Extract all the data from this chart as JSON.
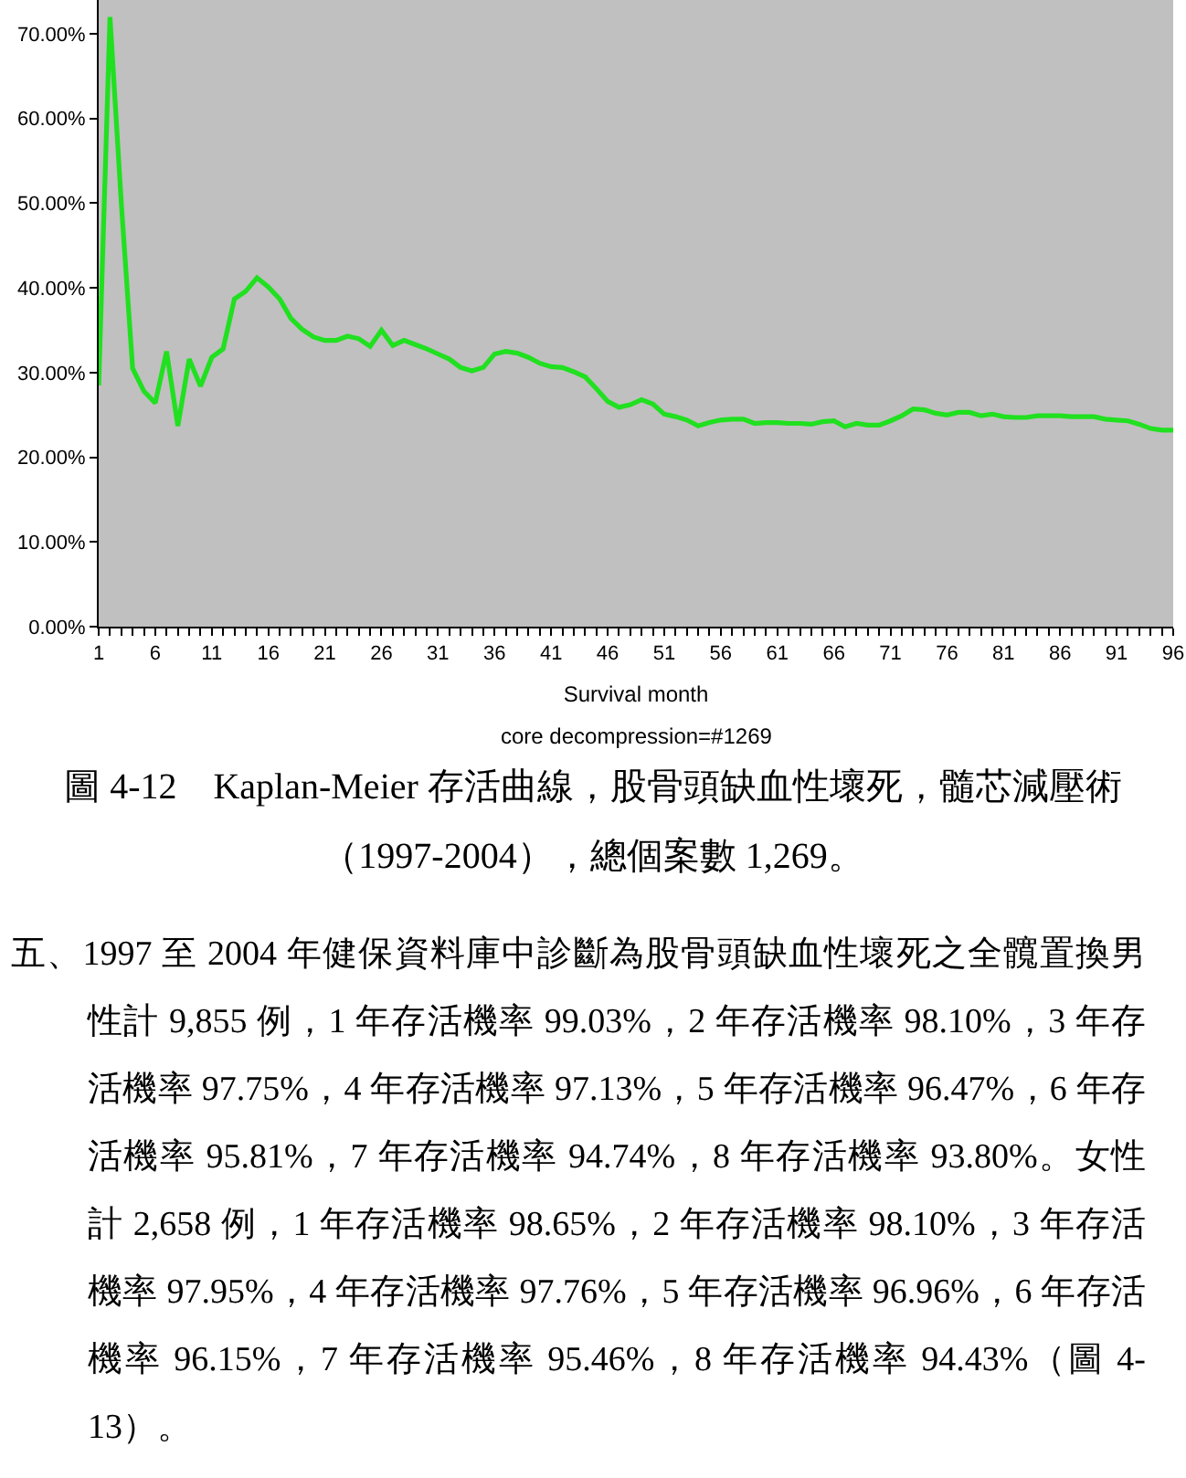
{
  "chart_data": {
    "type": "line",
    "x": [
      1,
      2,
      3,
      4,
      5,
      6,
      7,
      8,
      9,
      10,
      11,
      12,
      13,
      14,
      15,
      16,
      17,
      18,
      19,
      20,
      21,
      22,
      23,
      24,
      25,
      26,
      27,
      28,
      29,
      30,
      31,
      32,
      33,
      34,
      35,
      36,
      37,
      38,
      39,
      40,
      41,
      42,
      43,
      44,
      45,
      46,
      47,
      48,
      49,
      50,
      51,
      52,
      53,
      54,
      55,
      56,
      57,
      58,
      59,
      60,
      61,
      62,
      63,
      64,
      65,
      66,
      67,
      68,
      69,
      70,
      71,
      72,
      73,
      74,
      75,
      76,
      77,
      78,
      79,
      80,
      81,
      82,
      83,
      84,
      85,
      86,
      87,
      88,
      89,
      90,
      91,
      92,
      93,
      94,
      95,
      96
    ],
    "values": [
      28.5,
      72,
      50,
      30.5,
      27.8,
      26.4,
      32.5,
      23.7,
      31.6,
      28.4,
      31.8,
      32.8,
      38.7,
      39.6,
      41.2,
      40.1,
      38.7,
      36.4,
      35.1,
      34.2,
      33.8,
      33.8,
      34.3,
      34.0,
      33.1,
      35.0,
      33.2,
      33.8,
      33.3,
      32.8,
      32.2,
      31.6,
      30.6,
      30.2,
      30.6,
      32.2,
      32.5,
      32.3,
      31.8,
      31.1,
      30.7,
      30.6,
      30.1,
      29.5,
      28.1,
      26.6,
      25.9,
      26.2,
      26.8,
      26.3,
      25.1,
      24.8,
      24.4,
      23.7,
      24.1,
      24.4,
      24.5,
      24.5,
      24.0,
      24.1,
      24.1,
      24.0,
      24.0,
      23.9,
      24.2,
      24.3,
      23.6,
      24.0,
      23.8,
      23.8,
      24.3,
      24.9,
      25.7,
      25.6,
      25.2,
      25.0,
      25.3,
      25.3,
      24.9,
      25.1,
      24.8,
      24.7,
      24.7,
      24.9,
      24.9,
      24.9,
      24.8,
      24.8,
      24.8,
      24.5,
      24.4,
      24.3,
      23.9,
      23.4,
      23.2,
      23.2
    ],
    "color": "#20e020",
    "xlabel": "Survival month",
    "xlim": [
      1,
      96
    ],
    "xticks": [
      1,
      {
        "value": 2,
        "label": null
      },
      {
        "value": 3,
        "label": null
      },
      {
        "value": 4,
        "label": null
      },
      {
        "value": 5,
        "label": null
      },
      6,
      {
        "value": 7,
        "label": null
      },
      {
        "value": 8,
        "label": null
      },
      {
        "value": 9,
        "label": null
      },
      {
        "value": 10,
        "label": null
      },
      11,
      {
        "value": 12,
        "label": null
      },
      {
        "value": 13,
        "label": null
      },
      {
        "value": 14,
        "label": null
      },
      {
        "value": 15,
        "label": null
      },
      16,
      {
        "value": 17,
        "label": null
      },
      {
        "value": 18,
        "label": null
      },
      {
        "value": 19,
        "label": null
      },
      {
        "value": 20,
        "label": null
      },
      21,
      {
        "value": 22,
        "label": null
      },
      {
        "value": 23,
        "label": null
      },
      {
        "value": 24,
        "label": null
      },
      {
        "value": 25,
        "label": null
      },
      26,
      {
        "value": 27,
        "label": null
      },
      {
        "value": 28,
        "label": null
      },
      {
        "value": 29,
        "label": null
      },
      {
        "value": 30,
        "label": null
      },
      31,
      {
        "value": 32,
        "label": null
      },
      {
        "value": 33,
        "label": null
      },
      {
        "value": 34,
        "label": null
      },
      {
        "value": 35,
        "label": null
      },
      36,
      {
        "value": 37,
        "label": null
      },
      {
        "value": 38,
        "label": null
      },
      {
        "value": 39,
        "label": null
      },
      {
        "value": 40,
        "label": null
      },
      41,
      {
        "value": 42,
        "label": null
      },
      {
        "value": 43,
        "label": null
      },
      {
        "value": 44,
        "label": null
      },
      {
        "value": 45,
        "label": null
      },
      46,
      {
        "value": 47,
        "label": null
      },
      {
        "value": 48,
        "label": null
      },
      {
        "value": 49,
        "label": null
      },
      {
        "value": 50,
        "label": null
      },
      51,
      {
        "value": 52,
        "label": null
      },
      {
        "value": 53,
        "label": null
      },
      {
        "value": 54,
        "label": null
      },
      {
        "value": 55,
        "label": null
      },
      56,
      {
        "value": 57,
        "label": null
      },
      {
        "value": 58,
        "label": null
      },
      {
        "value": 59,
        "label": null
      },
      {
        "value": 60,
        "label": null
      },
      61,
      {
        "value": 62,
        "label": null
      },
      {
        "value": 63,
        "label": null
      },
      {
        "value": 64,
        "label": null
      },
      {
        "value": 65,
        "label": null
      },
      66,
      {
        "value": 67,
        "label": null
      },
      {
        "value": 68,
        "label": null
      },
      {
        "value": 69,
        "label": null
      },
      {
        "value": 70,
        "label": null
      },
      71,
      {
        "value": 72,
        "label": null
      },
      {
        "value": 73,
        "label": null
      },
      {
        "value": 74,
        "label": null
      },
      {
        "value": 75,
        "label": null
      },
      76,
      {
        "value": 77,
        "label": null
      },
      {
        "value": 78,
        "label": null
      },
      {
        "value": 79,
        "label": null
      },
      {
        "value": 80,
        "label": null
      },
      81,
      {
        "value": 82,
        "label": null
      },
      {
        "value": 83,
        "label": null
      },
      {
        "value": 84,
        "label": null
      },
      {
        "value": 85,
        "label": null
      },
      86,
      {
        "value": 87,
        "label": null
      },
      {
        "value": 88,
        "label": null
      },
      {
        "value": 89,
        "label": null
      },
      {
        "value": 90,
        "label": null
      },
      91,
      {
        "value": 92,
        "label": null
      },
      {
        "value": 93,
        "label": null
      },
      {
        "value": 94,
        "label": null
      },
      {
        "value": 95,
        "label": null
      },
      96
    ],
    "ylim": [
      0,
      74
    ],
    "yticks": [
      {
        "value": 0,
        "label": "0.00%"
      },
      {
        "value": 10,
        "label": "10.00%"
      },
      {
        "value": 20,
        "label": "20.00%"
      },
      {
        "value": 30,
        "label": "30.00%"
      },
      {
        "value": 40,
        "label": "40.00%"
      },
      {
        "value": 50,
        "label": "50.00%"
      },
      {
        "value": 60,
        "label": "60.00%"
      },
      {
        "value": 70,
        "label": "70.00%"
      }
    ],
    "annotations": [
      "core decompression=#1269",
      "圖 4-12　Kaplan-Meier 存活曲線，股骨頭缺血性壞死，髓芯減壓術（1997-2004），總個案數 1,269。",
      "五、1997 至 2004 年健保資料庫中診斷為股骨頭缺血性壞死之全髖置換男性計 9,855 例，1 年存活機率 99.03%，2 年存活機率 98.10%，3 年存活機率 97.75%，4 年存活機率 97.13%，5 年存活機率 96.47%，6 年存活機率 95.81%，7 年存活機率 94.74%，8 年存活機率 93.80%。女性計 2,658 例，1 年存活機率 98.65%，2 年存活機率 98.10%，3 年存活機率 97.95%，4 年存活機率 97.76%，5 年存活機率 96.96%，6 年存活機率 96.15%，7 年存活機率 95.46%，8 年存活機率 94.43%（圖 4-13）。"
    ]
  }
}
